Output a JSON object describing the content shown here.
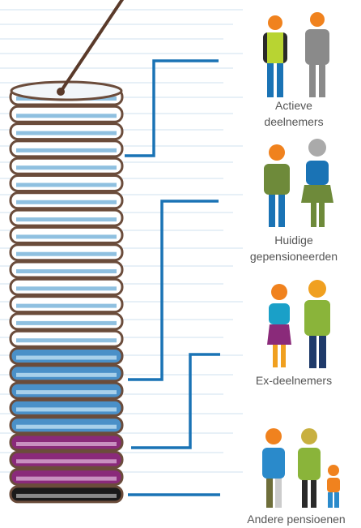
{
  "groups": [
    {
      "label": [
        "Actieve",
        "deelnemers"
      ]
    },
    {
      "label": [
        "Huidige",
        "gepensioneerden"
      ]
    },
    {
      "label": [
        "Ex-deelnemers"
      ]
    },
    {
      "label": [
        "Andere pensioenen"
      ]
    }
  ]
}
